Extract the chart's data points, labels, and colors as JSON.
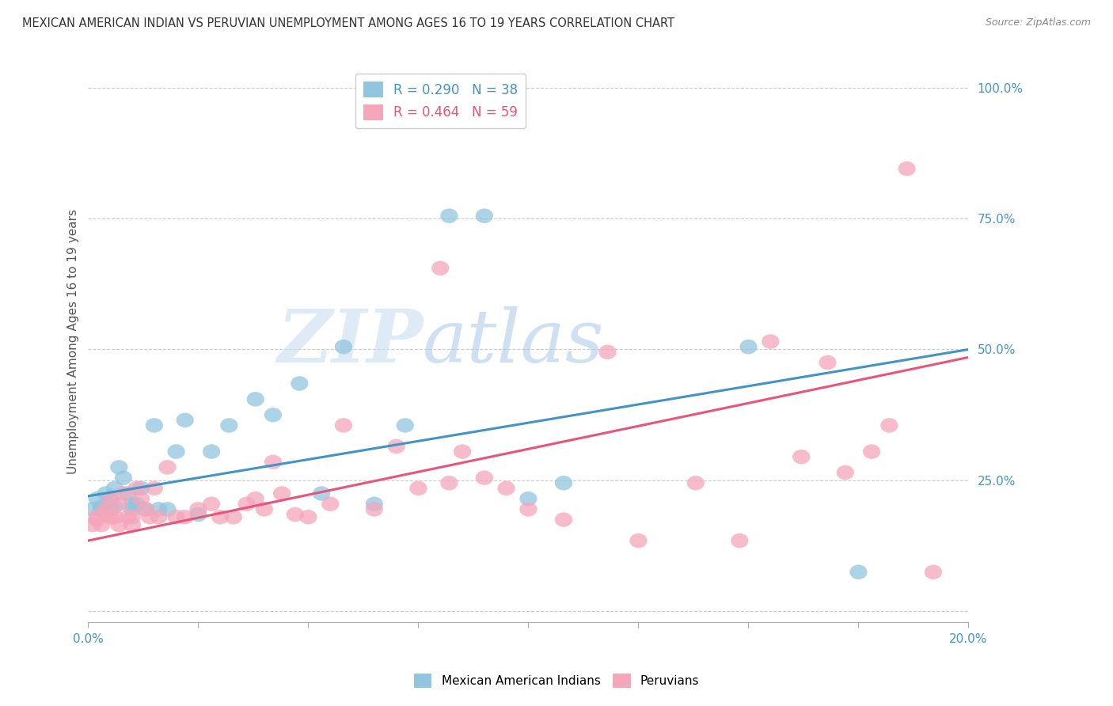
{
  "title": "MEXICAN AMERICAN INDIAN VS PERUVIAN UNEMPLOYMENT AMONG AGES 16 TO 19 YEARS CORRELATION CHART",
  "source": "Source: ZipAtlas.com",
  "ylabel": "Unemployment Among Ages 16 to 19 years",
  "xlim": [
    0.0,
    0.2
  ],
  "ylim": [
    -0.02,
    1.05
  ],
  "yticks": [
    0.0,
    0.25,
    0.5,
    0.75,
    1.0
  ],
  "ytick_labels": [
    "",
    "25.0%",
    "50.0%",
    "75.0%",
    "100.0%"
  ],
  "xtick_positions": [
    0.0,
    0.025,
    0.05,
    0.075,
    0.1,
    0.125,
    0.15,
    0.175,
    0.2
  ],
  "legend_blue_R": "R = 0.290",
  "legend_blue_N": "N = 38",
  "legend_pink_R": "R = 0.464",
  "legend_pink_N": "N = 59",
  "blue_color": "#92c5de",
  "pink_color": "#f4a6bb",
  "blue_line_color": "#4393c3",
  "pink_line_color": "#e8547a",
  "watermark_zip": "ZIP",
  "watermark_atlas": "atlas",
  "blue_intercept": 0.22,
  "blue_slope": 1.4,
  "pink_intercept": 0.135,
  "pink_slope": 1.75,
  "blue_points_x": [
    0.001,
    0.002,
    0.003,
    0.003,
    0.004,
    0.005,
    0.005,
    0.006,
    0.006,
    0.007,
    0.008,
    0.009,
    0.01,
    0.01,
    0.011,
    0.012,
    0.013,
    0.015,
    0.016,
    0.018,
    0.02,
    0.022,
    0.025,
    0.028,
    0.032,
    0.038,
    0.042,
    0.048,
    0.053,
    0.058,
    0.065,
    0.072,
    0.082,
    0.09,
    0.1,
    0.108,
    0.15,
    0.175
  ],
  "blue_points_y": [
    0.195,
    0.215,
    0.2,
    0.195,
    0.225,
    0.215,
    0.195,
    0.2,
    0.235,
    0.275,
    0.255,
    0.225,
    0.205,
    0.195,
    0.205,
    0.235,
    0.195,
    0.355,
    0.195,
    0.195,
    0.305,
    0.365,
    0.185,
    0.305,
    0.355,
    0.405,
    0.375,
    0.435,
    0.225,
    0.505,
    0.205,
    0.355,
    0.755,
    0.755,
    0.215,
    0.245,
    0.505,
    0.075
  ],
  "pink_points_x": [
    0.001,
    0.002,
    0.002,
    0.003,
    0.004,
    0.004,
    0.005,
    0.005,
    0.006,
    0.007,
    0.007,
    0.008,
    0.009,
    0.01,
    0.01,
    0.011,
    0.012,
    0.013,
    0.014,
    0.015,
    0.016,
    0.018,
    0.02,
    0.022,
    0.025,
    0.028,
    0.03,
    0.033,
    0.036,
    0.038,
    0.04,
    0.042,
    0.044,
    0.047,
    0.05,
    0.055,
    0.058,
    0.065,
    0.07,
    0.075,
    0.08,
    0.082,
    0.085,
    0.09,
    0.095,
    0.1,
    0.108,
    0.118,
    0.125,
    0.138,
    0.148,
    0.155,
    0.162,
    0.168,
    0.172,
    0.178,
    0.182,
    0.186,
    0.192
  ],
  "pink_points_y": [
    0.165,
    0.175,
    0.18,
    0.165,
    0.195,
    0.185,
    0.215,
    0.18,
    0.18,
    0.205,
    0.165,
    0.225,
    0.18,
    0.165,
    0.18,
    0.235,
    0.215,
    0.195,
    0.18,
    0.235,
    0.18,
    0.275,
    0.18,
    0.18,
    0.195,
    0.205,
    0.18,
    0.18,
    0.205,
    0.215,
    0.195,
    0.285,
    0.225,
    0.185,
    0.18,
    0.205,
    0.355,
    0.195,
    0.315,
    0.235,
    0.655,
    0.245,
    0.305,
    0.255,
    0.235,
    0.195,
    0.175,
    0.495,
    0.135,
    0.245,
    0.135,
    0.515,
    0.295,
    0.475,
    0.265,
    0.305,
    0.355,
    0.845,
    0.075
  ]
}
